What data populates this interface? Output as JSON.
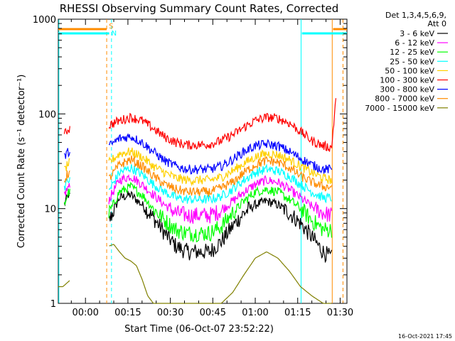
{
  "chart_data": {
    "type": "line",
    "title": "RHESSI Observing Summary Count Rates, Corrected",
    "xlabel": "Start Time (06-Oct-07 23:52:22)",
    "ylabel": "Corrected Count Rate (s⁻¹ detector⁻¹)",
    "ylog": true,
    "xlim": [
      -9.6,
      92.4
    ],
    "ylim": [
      1,
      1000
    ],
    "x_unit": "minutes after 00:00",
    "x_ticks": [
      {
        "x": 0,
        "label": "00:00"
      },
      {
        "x": 15,
        "label": "00:15"
      },
      {
        "x": 30,
        "label": "00:30"
      },
      {
        "x": 45,
        "label": "00:45"
      },
      {
        "x": 60,
        "label": "01:00"
      },
      {
        "x": 75,
        "label": "01:15"
      },
      {
        "x": 90,
        "label": "01:30"
      }
    ],
    "y_ticks": [
      {
        "y": 1,
        "label": "1"
      },
      {
        "y": 10,
        "label": "10"
      },
      {
        "y": 100,
        "label": "100"
      },
      {
        "y": 1000,
        "label": "1000"
      }
    ],
    "legend_header": [
      "Det 1,3,4,5,6,9,",
      "Att 0"
    ],
    "legend_position": "right",
    "series": [
      {
        "name": "3 - 6 keV",
        "color": "#000000",
        "x": [
          -7.5,
          -6,
          8,
          12,
          16,
          20,
          24,
          28,
          32,
          36,
          40,
          44,
          48,
          52,
          56,
          60,
          64,
          68,
          72,
          76,
          80,
          84,
          87
        ],
        "y": [
          11,
          14,
          7,
          13,
          14,
          11,
          8,
          5.5,
          4,
          3.5,
          3.5,
          3.5,
          4.5,
          6.5,
          9,
          11,
          12,
          11,
          9,
          7,
          5,
          3.5,
          3
        ]
      },
      {
        "name": "6 - 12 keV",
        "color": "#ff00ff",
        "x": [
          -7.5,
          -6,
          8,
          12,
          16,
          20,
          24,
          28,
          32,
          36,
          40,
          44,
          48,
          52,
          56,
          60,
          64,
          68,
          72,
          76,
          80,
          84,
          87
        ],
        "y": [
          14,
          17,
          12,
          20,
          22,
          18,
          14,
          11,
          9,
          8.5,
          8.5,
          8.5,
          9.5,
          12,
          15,
          18,
          20,
          19,
          16,
          13,
          10.5,
          9,
          8.5
        ]
      },
      {
        "name": "12 - 25 keV",
        "color": "#00ff00",
        "x": [
          -7.5,
          -6,
          8,
          12,
          16,
          20,
          24,
          28,
          32,
          36,
          40,
          44,
          48,
          52,
          56,
          60,
          64,
          68,
          72,
          76,
          80,
          84,
          87
        ],
        "y": [
          11,
          15,
          8.5,
          15,
          17,
          14,
          10,
          7.5,
          6,
          5.5,
          5.5,
          5.5,
          6.5,
          9,
          12,
          15,
          16,
          15,
          12.5,
          10,
          7.5,
          6,
          6
        ]
      },
      {
        "name": "25 - 50 keV",
        "color": "#00ffff",
        "x": [
          -7.5,
          -6,
          8,
          12,
          16,
          20,
          24,
          28,
          32,
          36,
          40,
          44,
          48,
          52,
          56,
          60,
          64,
          68,
          72,
          76,
          80,
          84,
          87
        ],
        "y": [
          17,
          20,
          15,
          24,
          27,
          23,
          18,
          15,
          13,
          12.5,
          12.5,
          12.5,
          13.5,
          16,
          20,
          24,
          26,
          25,
          22,
          18,
          15,
          13,
          13
        ]
      },
      {
        "name": "50 - 100 keV",
        "color": "#ffd000",
        "x": [
          -7.5,
          -6,
          8,
          12,
          16,
          20,
          24,
          28,
          32,
          36,
          40,
          44,
          48,
          52,
          56,
          60,
          64,
          68,
          72,
          76,
          80,
          84,
          87
        ],
        "y": [
          25,
          30,
          30,
          38,
          40,
          35,
          28,
          24,
          21,
          20,
          20,
          20,
          21.5,
          25,
          30,
          35,
          38,
          37,
          33,
          28,
          24,
          21,
          20
        ]
      },
      {
        "name": "100 - 300 keV",
        "color": "#ff0000",
        "x": [
          -7.5,
          -6,
          8,
          12,
          16,
          20,
          24,
          28,
          32,
          36,
          40,
          44,
          48,
          52,
          56,
          60,
          64,
          68,
          72,
          76,
          80,
          84,
          87,
          88.5
        ],
        "y": [
          60,
          70,
          75,
          85,
          92,
          85,
          70,
          57,
          50,
          47,
          47,
          48,
          52,
          60,
          72,
          85,
          92,
          90,
          80,
          65,
          52,
          46,
          44,
          150
        ]
      },
      {
        "name": "300 - 800 keV",
        "color": "#0000ff",
        "x": [
          -7.5,
          -6,
          8,
          12,
          16,
          20,
          24,
          28,
          32,
          36,
          40,
          44,
          48,
          52,
          56,
          60,
          64,
          68,
          72,
          76,
          80,
          84,
          87
        ],
        "y": [
          35,
          40,
          45,
          55,
          58,
          50,
          40,
          32,
          28,
          26,
          26,
          26,
          28,
          33,
          40,
          46,
          48,
          46,
          40,
          34,
          29,
          26,
          26
        ]
      },
      {
        "name": "800 - 7000 keV",
        "color": "#ff8c00",
        "x": [
          -7.5,
          -6,
          8,
          12,
          16,
          20,
          24,
          28,
          32,
          36,
          40,
          44,
          48,
          52,
          56,
          60,
          64,
          68,
          72,
          76,
          80,
          84,
          87
        ],
        "y": [
          20,
          24,
          20,
          29,
          33,
          28,
          22,
          18,
          16,
          15,
          15,
          15,
          16.5,
          19,
          24,
          29,
          32,
          31,
          27,
          22,
          19,
          17,
          17
        ]
      },
      {
        "name": "7000 - 15000 keV",
        "color": "#808000",
        "x": [
          -9.6,
          -8,
          8,
          10,
          12,
          14,
          16,
          18,
          20,
          22,
          24,
          28,
          32,
          36,
          40,
          44,
          48,
          52,
          56,
          60,
          64,
          68,
          72,
          76,
          80,
          84,
          87
        ],
        "y": [
          1.5,
          1.5,
          4,
          4.2,
          3.5,
          3,
          2.8,
          2.5,
          1.8,
          1.2,
          1,
          1,
          1,
          1,
          1,
          1,
          1,
          1.3,
          2,
          3,
          3.5,
          3,
          2.2,
          1.5,
          1.2,
          1,
          1
        ]
      }
    ],
    "flags": [
      {
        "label": "S",
        "color": "#ff8c00",
        "segments": [
          [
            -9.6,
            7.5
          ],
          [
            87.5,
            92.4
          ]
        ]
      },
      {
        "label": "N",
        "color": "#00ffff",
        "segments": [
          [
            -9.6,
            8.4
          ],
          [
            76.5,
            92.4
          ]
        ]
      }
    ],
    "vertical_lines": [
      {
        "x": -9.4,
        "color": "#00ffff",
        "style": "solid"
      },
      {
        "x": 7.5,
        "color": "#ff8c00",
        "style": "dashed"
      },
      {
        "x": 9.2,
        "color": "#00ffff",
        "style": "dashed"
      },
      {
        "x": 76.2,
        "color": "#00ffff",
        "style": "solid"
      },
      {
        "x": 87.2,
        "color": "#ff8c00",
        "style": "solid"
      },
      {
        "x": 91.0,
        "color": "#ff8c00",
        "style": "dashed"
      }
    ],
    "footer": "16-Oct-2021 17:45"
  }
}
